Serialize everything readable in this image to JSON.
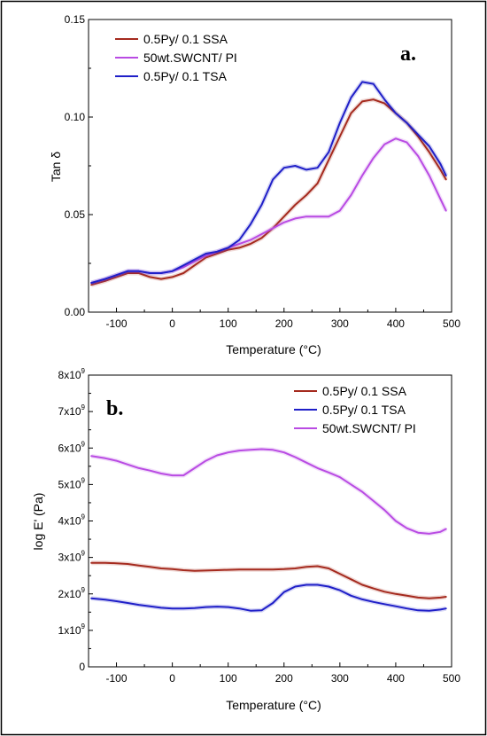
{
  "chart_data": [
    {
      "type": "line",
      "panel_label": "a.",
      "xlabel": "Temperature (°C)",
      "ylabel": "Tan δ",
      "xlim": [
        -150,
        500
      ],
      "ylim": [
        0,
        0.15
      ],
      "xticks": [
        -100,
        0,
        100,
        200,
        300,
        400,
        500
      ],
      "yticks": [
        0.0,
        0.05,
        0.1,
        0.15
      ],
      "ytick_labels": [
        "0.00",
        "0.05",
        "0.10",
        "0.15"
      ],
      "grid": false,
      "legend_position": "top-left",
      "series": [
        {
          "name": "0.5Py/ 0.1 SSA",
          "color": "#a52a1e",
          "x": [
            -145,
            -120,
            -100,
            -80,
            -60,
            -40,
            -20,
            0,
            20,
            40,
            60,
            80,
            100,
            120,
            140,
            160,
            180,
            200,
            220,
            240,
            260,
            280,
            300,
            320,
            340,
            360,
            380,
            400,
            420,
            440,
            460,
            480,
            490
          ],
          "y": [
            0.014,
            0.016,
            0.018,
            0.02,
            0.02,
            0.018,
            0.017,
            0.018,
            0.02,
            0.024,
            0.028,
            0.03,
            0.032,
            0.033,
            0.035,
            0.038,
            0.043,
            0.049,
            0.055,
            0.06,
            0.066,
            0.078,
            0.09,
            0.102,
            0.108,
            0.109,
            0.107,
            0.102,
            0.097,
            0.09,
            0.082,
            0.073,
            0.068
          ]
        },
        {
          "name": "50wt.SWCNT/ PI",
          "color": "#b94be3",
          "x": [
            -145,
            -120,
            -100,
            -80,
            -60,
            -40,
            -20,
            0,
            20,
            40,
            60,
            80,
            100,
            120,
            140,
            160,
            180,
            200,
            220,
            240,
            260,
            280,
            300,
            320,
            340,
            360,
            380,
            400,
            420,
            440,
            460,
            480,
            490
          ],
          "y": [
            0.015,
            0.017,
            0.019,
            0.021,
            0.021,
            0.02,
            0.02,
            0.021,
            0.023,
            0.026,
            0.029,
            0.031,
            0.033,
            0.035,
            0.037,
            0.04,
            0.043,
            0.046,
            0.048,
            0.049,
            0.049,
            0.049,
            0.052,
            0.06,
            0.07,
            0.079,
            0.086,
            0.089,
            0.087,
            0.08,
            0.07,
            0.058,
            0.052
          ]
        },
        {
          "name": "0.5Py/ 0.1 TSA",
          "color": "#1f1fc8",
          "x": [
            -145,
            -120,
            -100,
            -80,
            -60,
            -40,
            -20,
            0,
            20,
            40,
            60,
            80,
            100,
            120,
            140,
            160,
            180,
            200,
            220,
            240,
            260,
            280,
            300,
            320,
            340,
            360,
            380,
            400,
            420,
            440,
            460,
            480,
            490
          ],
          "y": [
            0.015,
            0.017,
            0.019,
            0.021,
            0.021,
            0.02,
            0.02,
            0.021,
            0.024,
            0.027,
            0.03,
            0.031,
            0.033,
            0.037,
            0.045,
            0.055,
            0.068,
            0.074,
            0.075,
            0.073,
            0.074,
            0.082,
            0.097,
            0.11,
            0.118,
            0.117,
            0.109,
            0.102,
            0.097,
            0.091,
            0.085,
            0.076,
            0.07
          ]
        }
      ]
    },
    {
      "type": "line",
      "panel_label": "b.",
      "xlabel": "Temperature (°C)",
      "ylabel": "log E' (Pa)",
      "xlim": [
        -150,
        500
      ],
      "ylim": [
        0,
        8000000000
      ],
      "xticks": [
        -100,
        0,
        100,
        200,
        300,
        400,
        500
      ],
      "yticks": [
        0,
        1000000000,
        2000000000,
        3000000000,
        4000000000,
        5000000000,
        6000000000,
        7000000000,
        8000000000
      ],
      "ytick_labels": [
        {
          "mantissa": "0",
          "exp": ""
        },
        {
          "mantissa": "1x10",
          "exp": "9"
        },
        {
          "mantissa": "2x10",
          "exp": "9"
        },
        {
          "mantissa": "3x10",
          "exp": "9"
        },
        {
          "mantissa": "4x10",
          "exp": "9"
        },
        {
          "mantissa": "5x10",
          "exp": "9"
        },
        {
          "mantissa": "6x10",
          "exp": "9"
        },
        {
          "mantissa": "7x10",
          "exp": "9"
        },
        {
          "mantissa": "8x10",
          "exp": "9"
        }
      ],
      "grid": false,
      "legend_position": "top-right",
      "series": [
        {
          "name": "0.5Py/ 0.1 SSA",
          "color": "#a52a1e",
          "x": [
            -145,
            -120,
            -100,
            -80,
            -60,
            -40,
            -20,
            0,
            20,
            40,
            60,
            80,
            100,
            120,
            140,
            160,
            180,
            200,
            220,
            240,
            260,
            280,
            300,
            320,
            340,
            360,
            380,
            400,
            420,
            440,
            460,
            480,
            490
          ],
          "y": [
            2850000000,
            2850000000,
            2840000000,
            2820000000,
            2780000000,
            2740000000,
            2700000000,
            2680000000,
            2650000000,
            2630000000,
            2640000000,
            2650000000,
            2660000000,
            2670000000,
            2670000000,
            2670000000,
            2670000000,
            2680000000,
            2700000000,
            2740000000,
            2760000000,
            2700000000,
            2550000000,
            2400000000,
            2250000000,
            2150000000,
            2060000000,
            2000000000,
            1950000000,
            1900000000,
            1880000000,
            1900000000,
            1920000000
          ]
        },
        {
          "name": "0.5Py/ 0.1 TSA",
          "color": "#1f1fc8",
          "x": [
            -145,
            -120,
            -100,
            -80,
            -60,
            -40,
            -20,
            0,
            20,
            40,
            60,
            80,
            100,
            120,
            140,
            160,
            180,
            200,
            220,
            240,
            260,
            280,
            300,
            320,
            340,
            360,
            380,
            400,
            420,
            440,
            460,
            480,
            490
          ],
          "y": [
            1880000000,
            1840000000,
            1800000000,
            1750000000,
            1700000000,
            1660000000,
            1620000000,
            1600000000,
            1600000000,
            1610000000,
            1640000000,
            1650000000,
            1640000000,
            1600000000,
            1540000000,
            1550000000,
            1750000000,
            2050000000,
            2200000000,
            2250000000,
            2250000000,
            2200000000,
            2100000000,
            1950000000,
            1850000000,
            1780000000,
            1720000000,
            1660000000,
            1600000000,
            1550000000,
            1540000000,
            1570000000,
            1600000000
          ]
        },
        {
          "name": "50wt.SWCNT/ PI",
          "color": "#b94be3",
          "x": [
            -145,
            -120,
            -100,
            -80,
            -60,
            -40,
            -20,
            0,
            20,
            40,
            60,
            80,
            100,
            120,
            140,
            160,
            180,
            200,
            220,
            240,
            260,
            280,
            300,
            320,
            340,
            360,
            380,
            400,
            420,
            440,
            460,
            480,
            490
          ],
          "y": [
            5780000000,
            5720000000,
            5650000000,
            5550000000,
            5450000000,
            5380000000,
            5300000000,
            5250000000,
            5250000000,
            5450000000,
            5650000000,
            5800000000,
            5880000000,
            5930000000,
            5950000000,
            5970000000,
            5950000000,
            5880000000,
            5750000000,
            5600000000,
            5450000000,
            5330000000,
            5200000000,
            5000000000,
            4800000000,
            4550000000,
            4300000000,
            4000000000,
            3800000000,
            3680000000,
            3650000000,
            3700000000,
            3780000000
          ]
        }
      ]
    }
  ]
}
